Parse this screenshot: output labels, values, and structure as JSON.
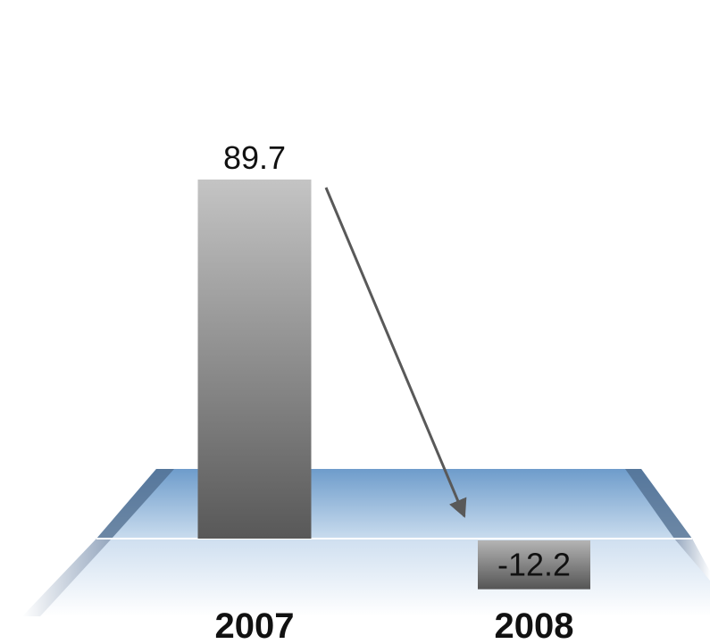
{
  "chart_data": {
    "type": "bar",
    "categories": [
      "2007",
      "2008"
    ],
    "values": [
      89.7,
      -12.2
    ],
    "value_labels": [
      "89.7",
      "-12.2"
    ],
    "title": "",
    "xlabel": "",
    "ylabel": "",
    "ylim": [
      -12.2,
      89.7
    ],
    "grid": false,
    "legend": "none",
    "annotation": "arrow-down-from-2007-to-2008"
  },
  "colors": {
    "bar_top": "#c4c4c4",
    "bar_bottom": "#585858",
    "neg_bar_top": "#b4b4b4",
    "neg_bar_bottom": "#555555",
    "arrow": "#595959",
    "floor_back": "#6e9ccb",
    "floor_front": "#e6eef7"
  }
}
